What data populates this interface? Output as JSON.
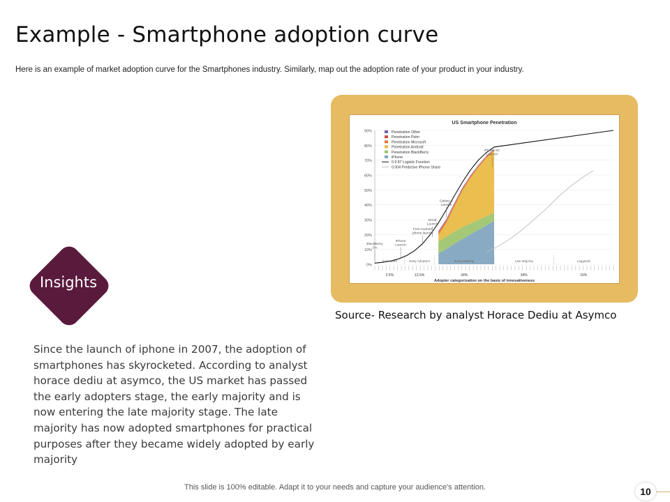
{
  "slide": {
    "title": "Example - Smartphone adoption curve",
    "subtitle": "Here is an example of market adoption curve for the Smartphones industry. Similarly, map out the adoption rate of your product in your industry.",
    "source": "Source- Research by analyst Horace Dediu at Asymco",
    "insights_label": "Insights",
    "insights_text": "Since the launch of iphone in 2007, the adoption of smartphones has skyrocketed. According to analyst horace dediu at asymco, the US market has passed the early adopters stage, the early majority and is now entering the late majority stage. The late majority has now adopted smartphones for practical purposes after they became widely adopted by early majority",
    "footer": "This slide is 100% editable. Adapt it to your needs and capture your audience's attention.",
    "page_number": "10"
  },
  "colors": {
    "frame": "#e6bb62",
    "diamond": "#5a1a3c",
    "other": "#7060a8",
    "palm": "#d24a4a",
    "microsoft": "#e07a30",
    "android": "#e8b840",
    "blackberry": "#9cc36a",
    "iphone": "#7ea4be"
  },
  "chart_data": {
    "type": "area",
    "title": "US Smartphone Penetration",
    "xlabel": "Adopter categorization on the basis of innovativeness",
    "ylabel": "",
    "ylim": [
      0,
      90
    ],
    "yticks": [
      "0%",
      "10%",
      "20%",
      "30%",
      "40%",
      "50%",
      "60%",
      "70%",
      "80%",
      "90%"
    ],
    "legend": [
      {
        "label": "Penetration Other",
        "color": "#7060a8"
      },
      {
        "label": "Penetration Palm",
        "color": "#d24a4a"
      },
      {
        "label": "Penetration Microsoft",
        "color": "#e07a30"
      },
      {
        "label": "Penetration Android",
        "color": "#e8b840"
      },
      {
        "label": "Penetration BlackBerry",
        "color": "#9cc36a"
      },
      {
        "label": "iPhone",
        "color": "#7ea4be"
      },
      {
        "label": "0.9 87 Logistic Function",
        "color": "#111111"
      },
      {
        "label": "0.004 Predictive iPhone Share",
        "color": "#bfbfbf"
      }
    ],
    "x": [
      0,
      8,
      16,
      24,
      32,
      40,
      48,
      56,
      64,
      72,
      80,
      88,
      96,
      104,
      112,
      120
    ],
    "logistic": [
      0.8,
      1.3,
      2.2,
      3.6,
      5.8,
      9.1,
      13.8,
      20.1,
      27.8,
      36.7,
      46.0,
      55.1,
      63.2,
      69.9,
      75.0,
      78.8
    ],
    "series": [
      {
        "name": "iPhone",
        "values": [
          null,
          null,
          null,
          null,
          null,
          null,
          null,
          null,
          7.2,
          10.3,
          13.7,
          17.0,
          20.0,
          23.0,
          26.0,
          29.0
        ]
      },
      {
        "name": "BlackBerry",
        "values": [
          null,
          null,
          null,
          null,
          null,
          null,
          null,
          null,
          8.2,
          8.3,
          8.2,
          7.9,
          7.4,
          6.8,
          6.2,
          5.7
        ]
      },
      {
        "name": "Android",
        "values": [
          null,
          null,
          null,
          null,
          null,
          null,
          null,
          null,
          4.2,
          9.2,
          16.8,
          24.4,
          30.4,
          35.3,
          39.2,
          41.6
        ]
      },
      {
        "name": "Microsoft",
        "values": [
          null,
          null,
          null,
          null,
          null,
          null,
          null,
          null,
          1.5,
          1.4,
          1.3,
          1.2,
          1.0,
          0.9,
          0.8,
          0.7
        ]
      },
      {
        "name": "Palm",
        "values": [
          null,
          null,
          null,
          null,
          null,
          null,
          null,
          null,
          0.8,
          0.7,
          0.6,
          0.5,
          0.4,
          0.3,
          0.3,
          0.2
        ]
      },
      {
        "name": "Other",
        "values": [
          null,
          null,
          null,
          null,
          null,
          null,
          null,
          null,
          0.5,
          0.5,
          0.5,
          0.4,
          0.4,
          0.3,
          0.3,
          0.3
        ]
      }
    ],
    "predictive_iphone_share": {
      "x": [
        112,
        124,
        136,
        148,
        160,
        172,
        184,
        196,
        208,
        220
      ],
      "values": [
        8,
        12,
        17,
        23,
        30,
        37,
        45,
        52,
        58,
        63
      ]
    },
    "xlim": [
      0,
      240
    ],
    "x_end_value": 240,
    "x_end_logistic": 90,
    "annotations": [
      {
        "text": "BlackBerry 2%",
        "x": 0,
        "y": 2
      },
      {
        "text": "iPhone Launch",
        "x": 26,
        "y": 4
      },
      {
        "text": "First Android phone launch",
        "x": 48,
        "y": 12
      },
      {
        "text": "Droid Launch",
        "x": 58,
        "y": 18
      },
      {
        "text": "Galaxy S Launch",
        "x": 72,
        "y": 31
      },
      {
        "text": "iPhone 5C Launch",
        "x": 118,
        "y": 65
      }
    ],
    "categories": [
      "Innovators",
      "Early Adopters",
      "Early Majority",
      "Late Majority",
      "Laggards"
    ],
    "category_percents": [
      "2.5%",
      "13.5%",
      "34%",
      "34%",
      "16%"
    ]
  }
}
